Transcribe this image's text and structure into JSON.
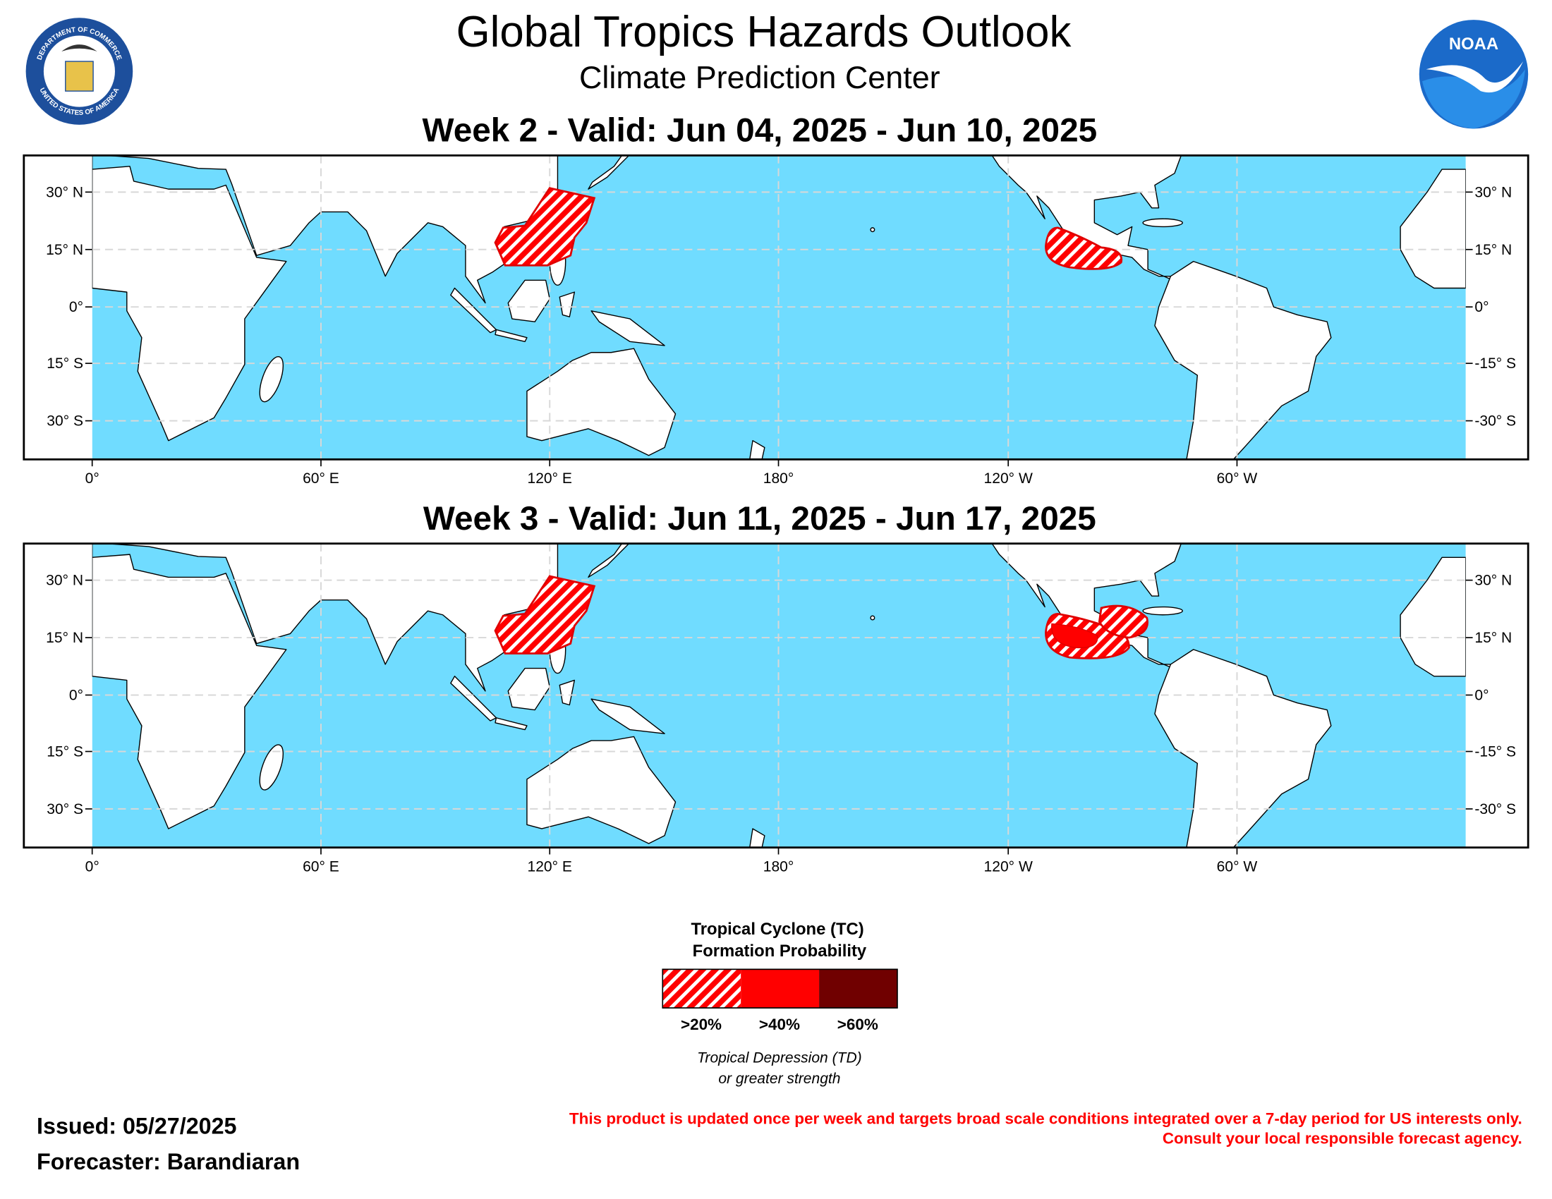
{
  "header": {
    "title": "Global Tropics Hazards Outlook",
    "subtitle": "Climate Prediction Center",
    "commerce_seal_top": "DEPARTMENT OF COMMERCE",
    "commerce_seal_bottom": "UNITED STATES OF AMERICA",
    "noaa_logo": "NOAA"
  },
  "panels": [
    {
      "title": "Week 2 - Valid: Jun 04, 2025 - Jun 10, 2025"
    },
    {
      "title": "Week 3 - Valid: Jun 11, 2025 - Jun 17, 2025"
    }
  ],
  "lat_labels_left": [
    "30° N",
    "15° N",
    "0°",
    "15° S",
    "30° S"
  ],
  "lat_labels_right": [
    "30° N",
    "15° N",
    "0°",
    "-15° S",
    "-30° S"
  ],
  "lon_labels": [
    "0°",
    "60° E",
    "120° E",
    "180°",
    "120° W",
    "60° W"
  ],
  "legend": {
    "title_lines": [
      "Tropical Cyclone (TC)",
      "Formation Probability"
    ],
    "categories": [
      ">20%",
      ">40%",
      ">60%"
    ],
    "note_lines": [
      "Tropical Depression (TD)",
      "or greater strength"
    ]
  },
  "footer": {
    "issued": "Issued: 05/27/2025",
    "forecaster": "Forecaster: Barandiaran",
    "disclaimer_lines": [
      "This product is updated once per week and targets broad scale conditions integrated over a 7-day period for US interests only.",
      "Consult your local responsible forecast agency."
    ]
  }
}
